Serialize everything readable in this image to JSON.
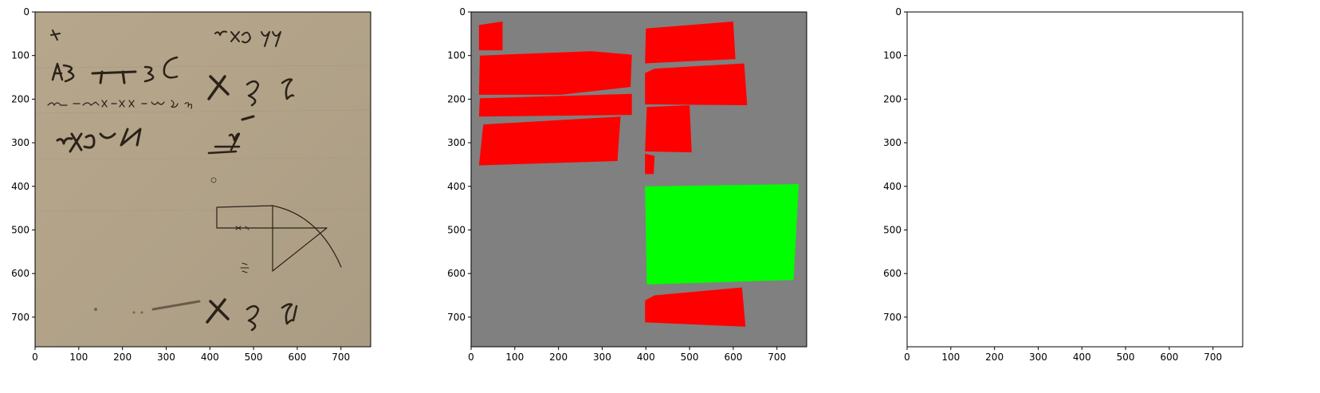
{
  "figure": {
    "panels": [
      {
        "id": "original",
        "description_name": "manuscript-photo-panel",
        "x_ticks": [
          "0",
          "100",
          "200",
          "300",
          "400",
          "500",
          "600",
          "700"
        ],
        "y_ticks": [
          "0",
          "100",
          "200",
          "300",
          "400",
          "500",
          "600",
          "700"
        ],
        "xlim": [
          0,
          768
        ],
        "ylim": [
          768,
          0
        ],
        "background_color": "#b5a58c"
      },
      {
        "id": "segmentation",
        "description_name": "segmentation-mask-panel",
        "x_ticks": [
          "0",
          "100",
          "200",
          "300",
          "400",
          "500",
          "600",
          "700"
        ],
        "y_ticks": [
          "0",
          "100",
          "200",
          "300",
          "400",
          "500",
          "600",
          "700"
        ],
        "xlim": [
          0,
          768
        ],
        "ylim": [
          768,
          0
        ],
        "background_color": "#808080",
        "region_colors": {
          "text": "#ff0000",
          "figure": "#00ff00"
        }
      },
      {
        "id": "binarized",
        "description_name": "binarized-panel",
        "x_ticks": [
          "0",
          "100",
          "200",
          "300",
          "400",
          "500",
          "600",
          "700"
        ],
        "y_ticks": [
          "0",
          "100",
          "200",
          "300",
          "400",
          "500",
          "600",
          "700"
        ],
        "xlim": [
          0,
          768
        ],
        "ylim": [
          768,
          0
        ],
        "background_color": "#ffffff"
      }
    ]
  },
  "chart_data": {
    "type": "other",
    "segmentation_regions": [
      {
        "kind": "text",
        "polygon": [
          [
            18,
            30
          ],
          [
            72,
            22
          ],
          [
            72,
            88
          ],
          [
            18,
            88
          ]
        ]
      },
      {
        "kind": "text",
        "polygon": [
          [
            20,
            100
          ],
          [
            275,
            90
          ],
          [
            368,
            98
          ],
          [
            365,
            172
          ],
          [
            205,
            190
          ],
          [
            18,
            190
          ]
        ]
      },
      {
        "kind": "text",
        "polygon": [
          [
            20,
            198
          ],
          [
            368,
            188
          ],
          [
            368,
            236
          ],
          [
            18,
            240
          ]
        ]
      },
      {
        "kind": "text",
        "polygon": [
          [
            28,
            258
          ],
          [
            342,
            240
          ],
          [
            335,
            342
          ],
          [
            18,
            352
          ]
        ]
      },
      {
        "kind": "text",
        "polygon": [
          [
            400,
            38
          ],
          [
            600,
            22
          ],
          [
            605,
            108
          ],
          [
            398,
            118
          ]
        ]
      },
      {
        "kind": "text",
        "polygon": [
          [
            398,
            140
          ],
          [
            420,
            130
          ],
          [
            625,
            118
          ],
          [
            632,
            214
          ],
          [
            398,
            212
          ]
        ]
      },
      {
        "kind": "text",
        "polygon": [
          [
            402,
            218
          ],
          [
            500,
            214
          ],
          [
            505,
            322
          ],
          [
            398,
            320
          ]
        ]
      },
      {
        "kind": "text",
        "polygon": [
          [
            398,
            325
          ],
          [
            420,
            330
          ],
          [
            418,
            372
          ],
          [
            398,
            372
          ]
        ]
      },
      {
        "kind": "figure",
        "polygon": [
          [
            398,
            400
          ],
          [
            750,
            395
          ],
          [
            738,
            615
          ],
          [
            402,
            625
          ]
        ]
      },
      {
        "kind": "text",
        "polygon": [
          [
            398,
            662
          ],
          [
            420,
            650
          ],
          [
            620,
            632
          ],
          [
            628,
            722
          ],
          [
            398,
            712
          ]
        ]
      }
    ]
  }
}
